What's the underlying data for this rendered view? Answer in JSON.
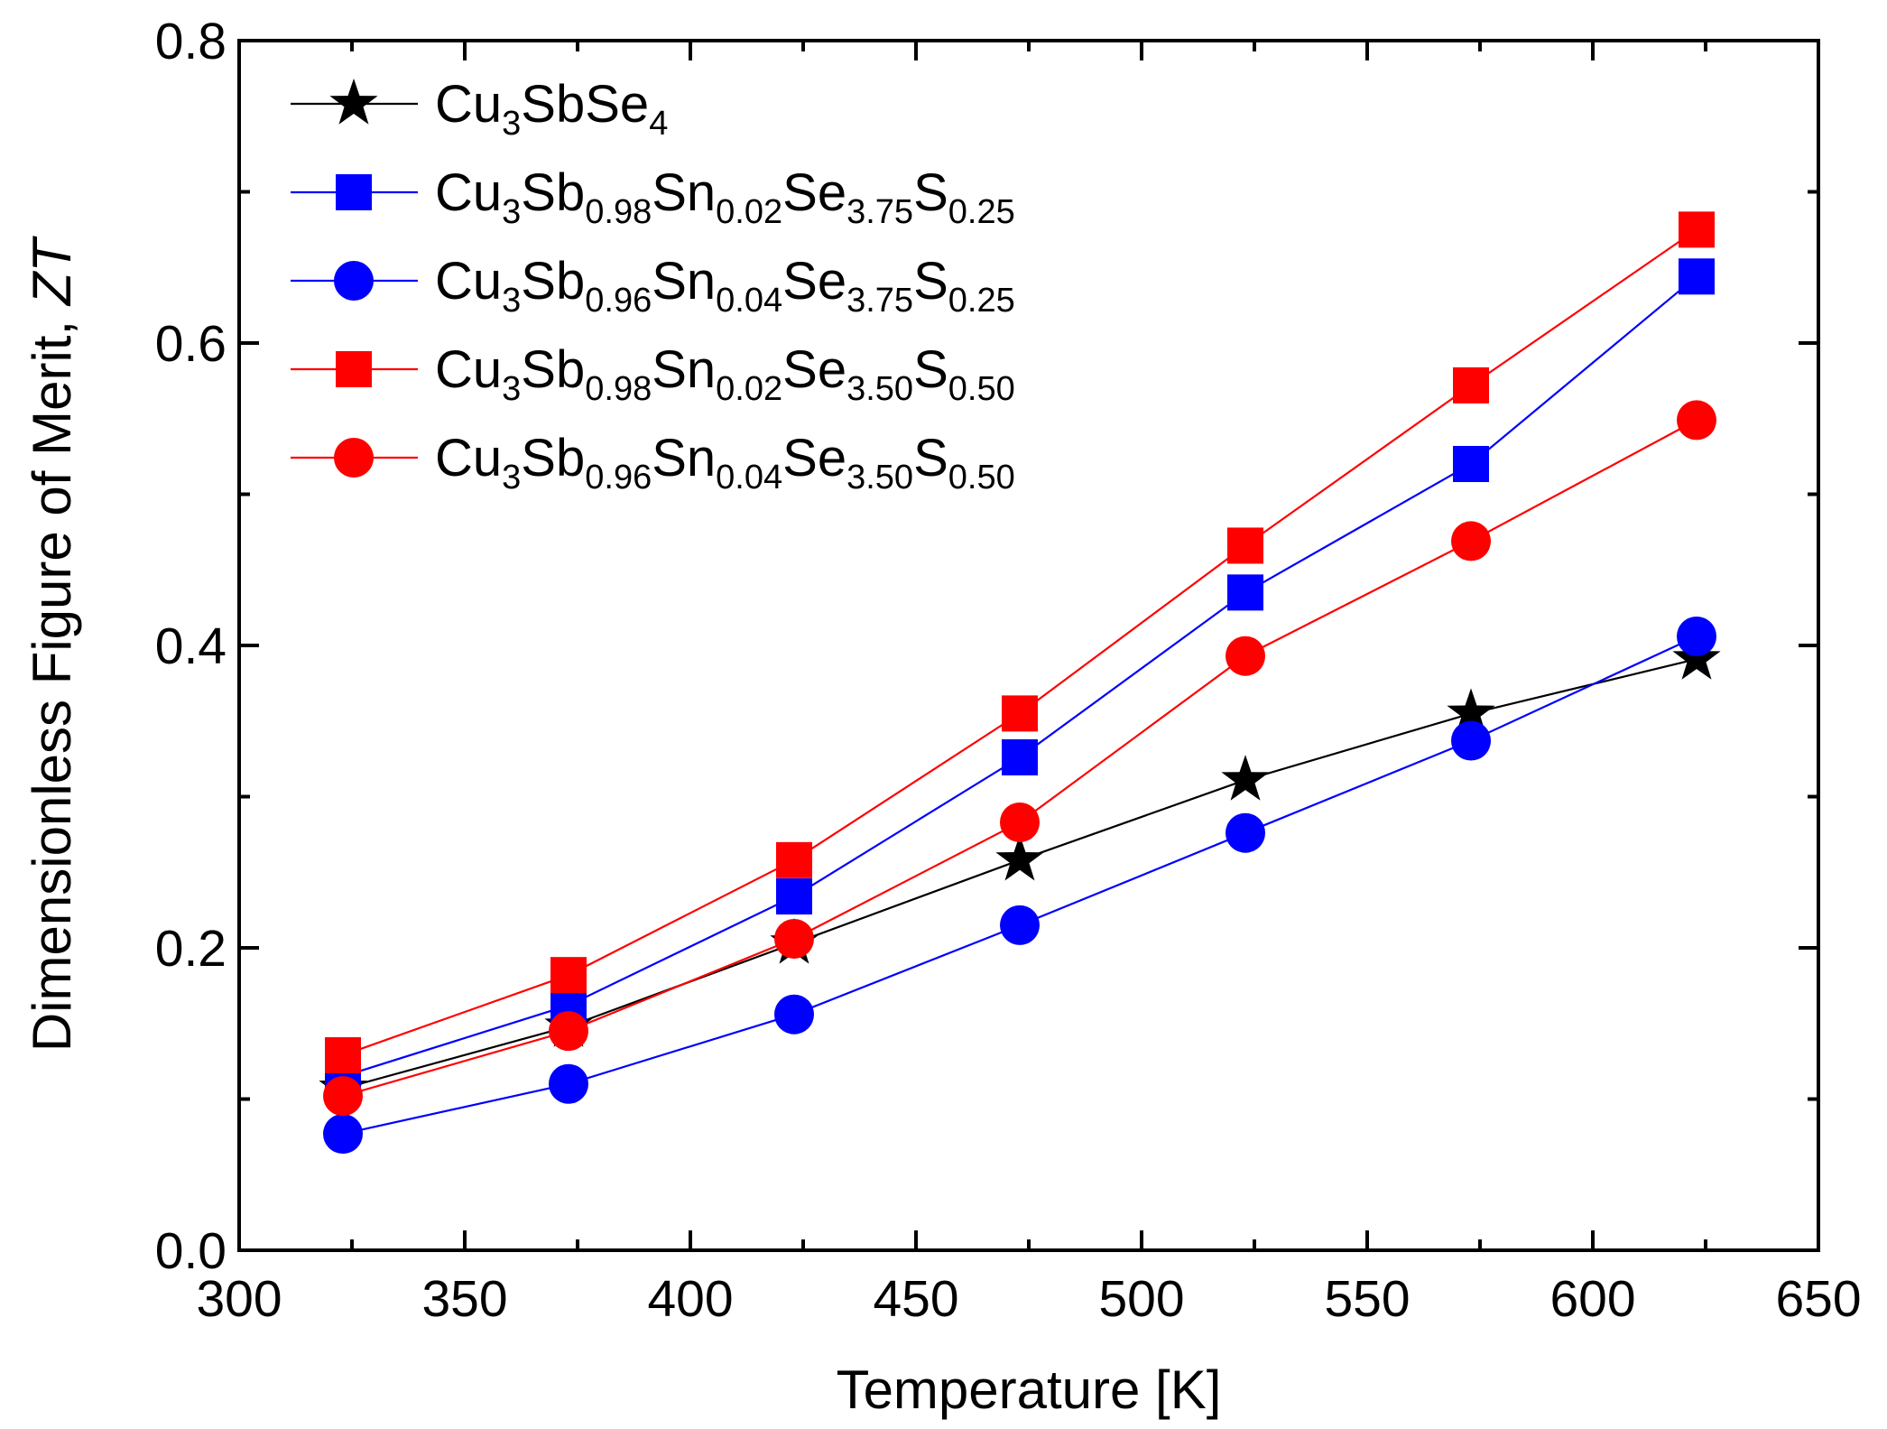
{
  "chart_data": {
    "type": "line",
    "title": "",
    "xlabel": "Temperature [K]",
    "ylabel": {
      "prefix": "Dimensionless Figure of Merit, ",
      "symbol": "ZT"
    },
    "xlim": [
      300,
      650
    ],
    "ylim": [
      0.0,
      0.8
    ],
    "xticks": [
      300,
      350,
      400,
      450,
      500,
      550,
      600,
      650
    ],
    "yticks": [
      0.0,
      0.2,
      0.4,
      0.6,
      0.8
    ],
    "ytick_labels": [
      "0.0",
      "0.2",
      "0.4",
      "0.6",
      "0.8"
    ],
    "grid": false,
    "legend_position": "top-left",
    "x": [
      323,
      373,
      423,
      473,
      523,
      573,
      623
    ],
    "series": [
      {
        "name": "Cu3SbSe4",
        "label_parts": [
          [
            "Cu",
            ""
          ],
          [
            "3",
            "sub"
          ],
          [
            "SbSe",
            ""
          ],
          [
            "4",
            "sub"
          ]
        ],
        "marker": "star",
        "color": "#000000",
        "values": [
          0.107,
          0.148,
          0.203,
          0.258,
          0.311,
          0.355,
          0.391
        ]
      },
      {
        "name": "Cu3Sb0.98Sn0.02Se3.75S0.25",
        "label_parts": [
          [
            "Cu",
            ""
          ],
          [
            "3",
            "sub"
          ],
          [
            "Sb",
            ""
          ],
          [
            "0.98",
            "sub"
          ],
          [
            "Sn",
            ""
          ],
          [
            "0.02",
            "sub"
          ],
          [
            "Se",
            ""
          ],
          [
            "3.75",
            "sub"
          ],
          [
            "S",
            ""
          ],
          [
            "0.25",
            "sub"
          ]
        ],
        "marker": "square",
        "color": "#0000ff",
        "values": [
          0.115,
          0.162,
          0.234,
          0.326,
          0.435,
          0.52,
          0.644
        ]
      },
      {
        "name": "Cu3Sb0.96Sn0.04Se3.75S0.25",
        "label_parts": [
          [
            "Cu",
            ""
          ],
          [
            "3",
            "sub"
          ],
          [
            "Sb",
            ""
          ],
          [
            "0.96",
            "sub"
          ],
          [
            "Sn",
            ""
          ],
          [
            "0.04",
            "sub"
          ],
          [
            "Se",
            ""
          ],
          [
            "3.75",
            "sub"
          ],
          [
            "S",
            ""
          ],
          [
            "0.25",
            "sub"
          ]
        ],
        "marker": "circle",
        "color": "#0000ff",
        "values": [
          0.077,
          0.11,
          0.156,
          0.215,
          0.276,
          0.337,
          0.406
        ]
      },
      {
        "name": "Cu3Sb0.98Sn0.02Se3.50S0.50",
        "label_parts": [
          [
            "Cu",
            ""
          ],
          [
            "3",
            "sub"
          ],
          [
            "Sb",
            ""
          ],
          [
            "0.98",
            "sub"
          ],
          [
            "Sn",
            ""
          ],
          [
            "0.02",
            "sub"
          ],
          [
            "Se",
            ""
          ],
          [
            "3.50",
            "sub"
          ],
          [
            "S",
            ""
          ],
          [
            "0.50",
            "sub"
          ]
        ],
        "marker": "square",
        "color": "#ff0000",
        "values": [
          0.129,
          0.182,
          0.258,
          0.355,
          0.466,
          0.572,
          0.675
        ]
      },
      {
        "name": "Cu3Sb0.96Sn0.04Se3.50S0.50",
        "label_parts": [
          [
            "Cu",
            ""
          ],
          [
            "3",
            "sub"
          ],
          [
            "Sb",
            ""
          ],
          [
            "0.96",
            "sub"
          ],
          [
            "Sn",
            ""
          ],
          [
            "0.04",
            "sub"
          ],
          [
            "Se",
            ""
          ],
          [
            "3.50",
            "sub"
          ],
          [
            "S",
            ""
          ],
          [
            "0.50",
            "sub"
          ]
        ],
        "marker": "circle",
        "color": "#ff0000",
        "values": [
          0.102,
          0.145,
          0.206,
          0.283,
          0.393,
          0.469,
          0.549
        ]
      }
    ]
  }
}
